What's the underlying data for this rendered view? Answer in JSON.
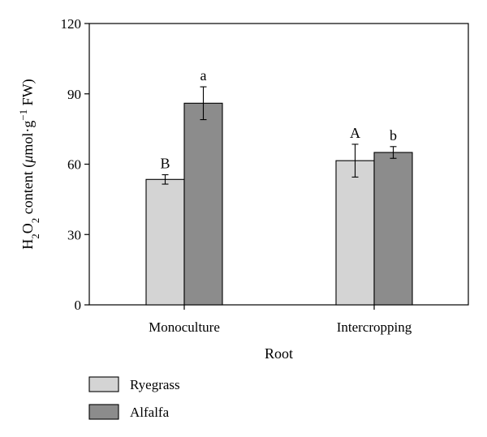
{
  "chart_data": {
    "type": "bar",
    "categories": [
      "Monoculture",
      "Intercropping"
    ],
    "series": [
      {
        "name": "Ryegrass",
        "color": "#d4d4d4",
        "values": [
          53.5,
          61.5
        ],
        "errors": [
          2.0,
          7.0
        ],
        "letters": [
          "B",
          "A"
        ]
      },
      {
        "name": "Alfalfa",
        "color": "#8c8c8c",
        "values": [
          86.0,
          65.0
        ],
        "errors": [
          7.0,
          2.5
        ],
        "letters": [
          "a",
          "b"
        ]
      }
    ],
    "xlabel": "Root",
    "ylabel": {
      "parts": [
        {
          "text": "H",
          "shift": "normal"
        },
        {
          "text": "2",
          "shift": "sub"
        },
        {
          "text": "O",
          "shift": "normal"
        },
        {
          "text": "2",
          "shift": "sub"
        },
        {
          "text": " content (",
          "shift": "normal"
        },
        {
          "text": "μ",
          "shift": "italic"
        },
        {
          "text": "mol·g",
          "shift": "normal"
        },
        {
          "text": "−1",
          "shift": "super"
        },
        {
          "text": " FW)",
          "shift": "normal"
        }
      ]
    },
    "ylim": [
      0,
      120
    ],
    "yticks": [
      0,
      30,
      60,
      90,
      120
    ],
    "legend_position": "bottom-left",
    "grid": false
  }
}
